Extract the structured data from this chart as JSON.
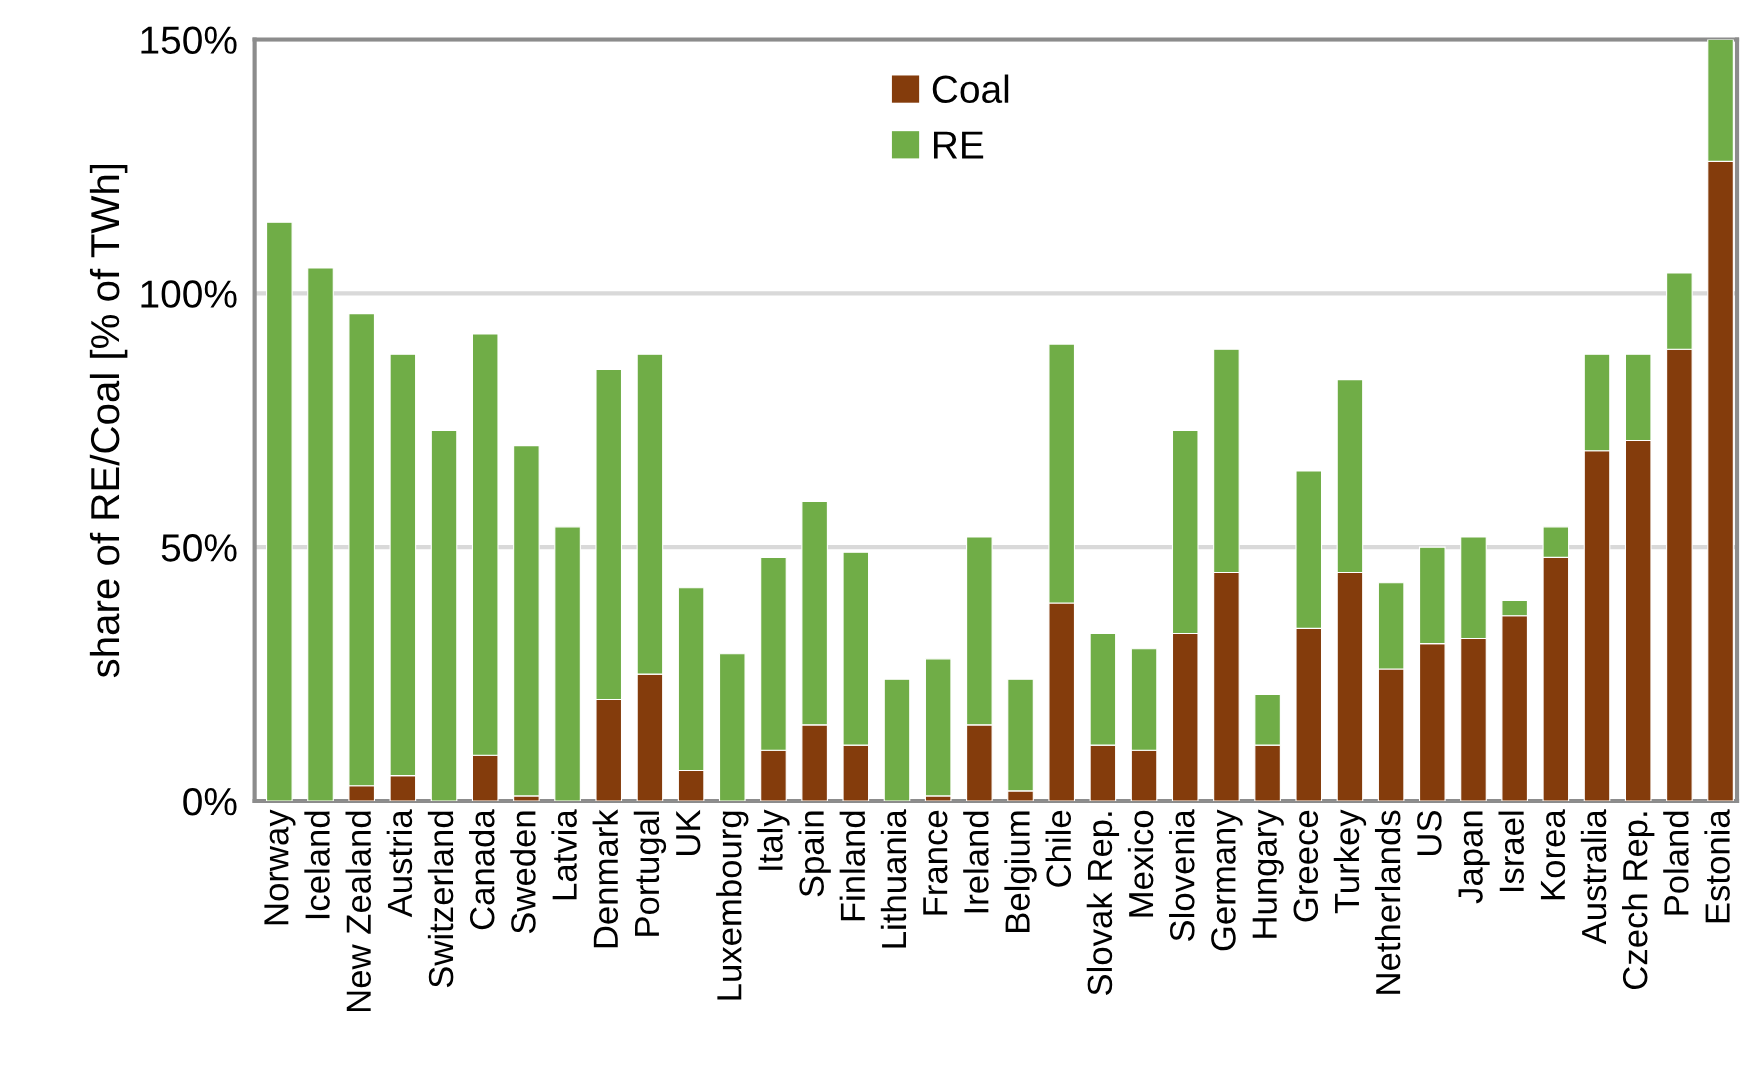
{
  "chart_data": {
    "type": "bar",
    "stacked": true,
    "ylabel": "share of RE/Coal [% of TWh]",
    "categories": [
      "Norway",
      "Iceland",
      "New Zealand",
      "Austria",
      "Switzerland",
      "Canada",
      "Sweden",
      "Latvia",
      "Denmark",
      "Portugal",
      "UK",
      "Luxembourg",
      "Italy",
      "Spain",
      "Finland",
      "Lithuania",
      "France",
      "Ireland",
      "Belgium",
      "Chile",
      "Slovak Rep.",
      "Mexico",
      "Slovenia",
      "Germany",
      "Hungary",
      "Greece",
      "Turkey",
      "Netherlands",
      "US",
      "Japan",
      "Israel",
      "Korea",
      "Australia",
      "Czech Rep.",
      "Poland",
      "Estonia"
    ],
    "series": [
      {
        "name": "Coal",
        "color": "#843c0c",
        "values": [
          0,
          0,
          3,
          5,
          0,
          9,
          1,
          0,
          20,
          25,
          6,
          0,
          10,
          15,
          11,
          0,
          1,
          15,
          2,
          39,
          11,
          10,
          33,
          45,
          11,
          34,
          45,
          26,
          31,
          32,
          36.5,
          48,
          69,
          71,
          89,
          126
        ]
      },
      {
        "name": "RE",
        "color": "#70ad47",
        "values": [
          114,
          105,
          93,
          83,
          73,
          83,
          69,
          54,
          65,
          63,
          36,
          29,
          38,
          44,
          38,
          24,
          27,
          37,
          22,
          51,
          22,
          20,
          40,
          44,
          10,
          31,
          38,
          17,
          19,
          20,
          3,
          6,
          19,
          17,
          15,
          24
        ]
      }
    ],
    "ylim": [
      0,
      150
    ],
    "yticks": [
      {
        "value": 0,
        "label": "0%"
      },
      {
        "value": 50,
        "label": "50%"
      },
      {
        "value": 100,
        "label": "100%"
      },
      {
        "value": 150,
        "label": "150%"
      }
    ],
    "grid": "y",
    "legend": "top"
  }
}
